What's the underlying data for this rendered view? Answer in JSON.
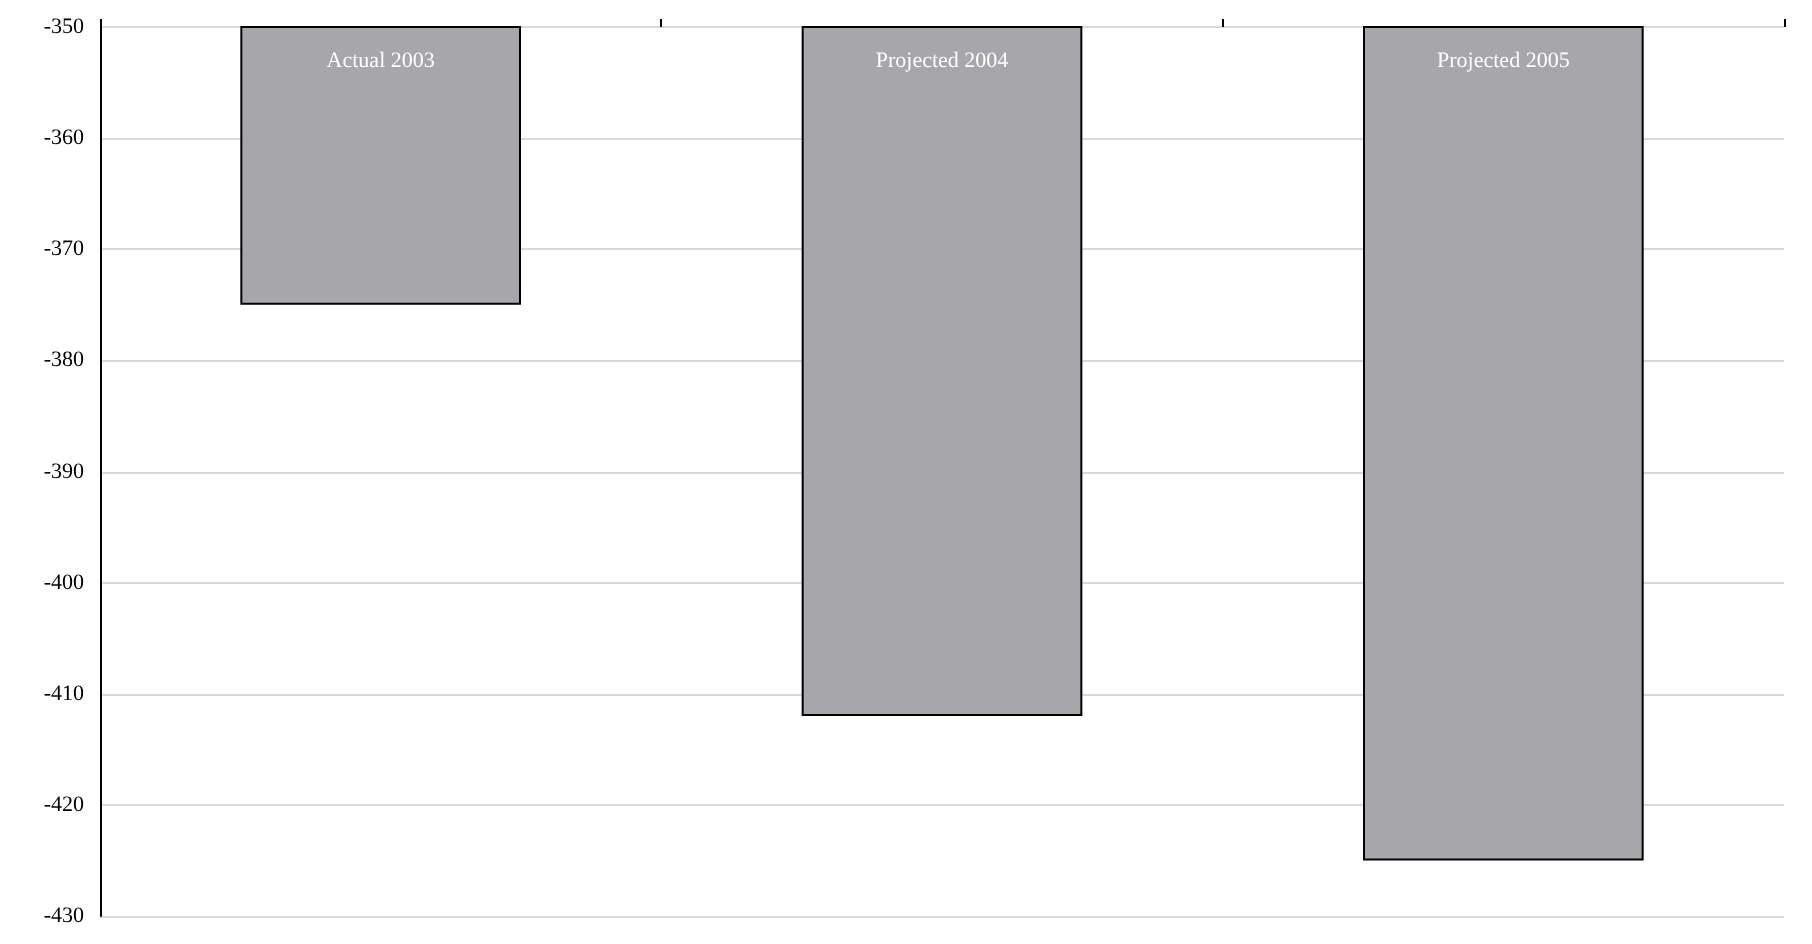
{
  "chart_data": {
    "type": "bar",
    "categories": [
      "Actual 2003",
      "Projected 2004",
      "Projected 2005"
    ],
    "values": [
      -375,
      -412,
      -425
    ],
    "color": "#a7a7ab",
    "ylim": [
      -430,
      -350
    ],
    "yticks": [
      -430,
      -420,
      -410,
      -400,
      -390,
      -380,
      -370,
      -360,
      -350
    ],
    "grid": "y",
    "tick_labels": "y"
  }
}
